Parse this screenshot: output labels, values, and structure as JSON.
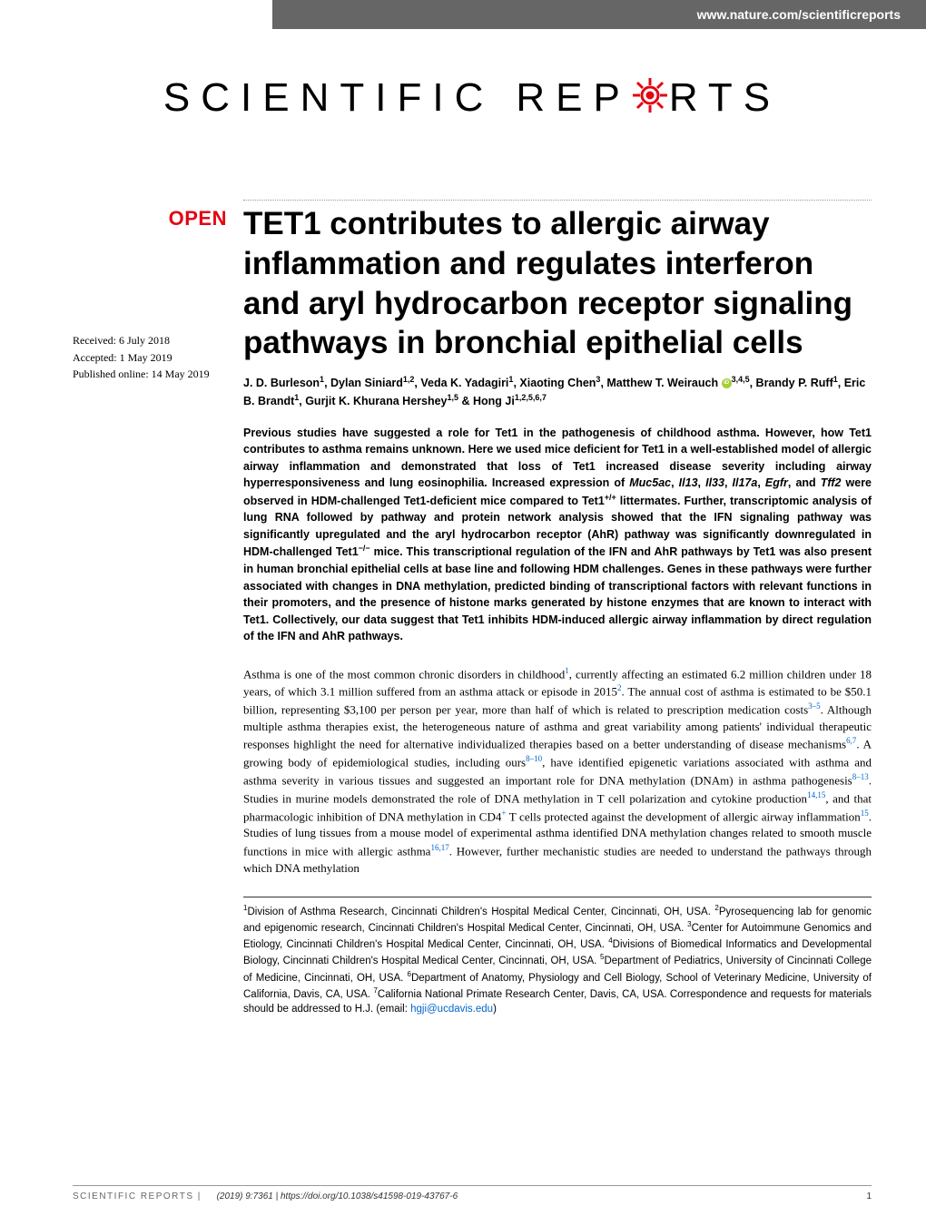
{
  "header": {
    "url": "www.nature.com/scientificreports"
  },
  "logo": {
    "text_before": "SCIENTIFIC",
    "text_mid1": "REP",
    "text_mid2": "RTS",
    "gear_color": "#e30613"
  },
  "badge": {
    "open": "OPEN"
  },
  "dates": {
    "received": "Received: 6 July 2018",
    "accepted": "Accepted: 1 May 2019",
    "published": "Published online: 14 May 2019"
  },
  "title": "TET1 contributes to allergic airway inflammation and regulates interferon and aryl hydrocarbon receptor signaling pathways in bronchial epithelial cells",
  "authors_html": "J. D. Burleson<sup>1</sup>, Dylan Siniard<sup>1,2</sup>, Veda K. Yadagiri<sup>1</sup>, Xiaoting Chen<sup>3</sup>, Matthew T. Weirauch <span class='orcid'></span><sup>3,4,5</sup>, Brandy P. Ruff<sup>1</sup>, Eric B. Brandt<sup>1</sup>, Gurjit K. Khurana Hershey<sup>1,5</sup> & Hong Ji<sup>1,2,5,6,7</sup>",
  "abstract_html": "Previous studies have suggested a role for Tet1 in the pathogenesis of childhood asthma. However, how Tet1 contributes to asthma remains unknown. Here we used mice deficient for Tet1 in a well-established model of allergic airway inflammation and demonstrated that loss of Tet1 increased disease severity including airway hyperresponsiveness and lung eosinophilia. Increased expression of <i>Muc5ac</i>, <i>Il13</i>, <i>Il33</i>, <i>Il17a</i>, <i>Egfr</i>, and <i>Tff2</i> were observed in HDM-challenged Tet1-deficient mice compared to Tet1<sup>+/+</sup> littermates. Further, transcriptomic analysis of lung RNA followed by pathway and protein network analysis showed that the IFN signaling pathway was significantly upregulated and the aryl hydrocarbon receptor (AhR) pathway was significantly downregulated in HDM-challenged Tet1<sup>−/−</sup> mice. This transcriptional regulation of the IFN and AhR pathways by Tet1 was also present in human bronchial epithelial cells at base line and following HDM challenges. Genes in these pathways were further associated with changes in DNA methylation, predicted binding of transcriptional factors with relevant functions in their promoters, and the presence of histone marks generated by histone enzymes that are known to interact with Tet1. Collectively, our data suggest that Tet1 inhibits HDM-induced allergic airway inflammation by direct regulation of the IFN and AhR pathways.",
  "body_html": "Asthma is one of the most common chronic disorders in childhood<sup class='ref-link'>1</sup>, currently affecting an estimated 6.2 million children under 18 years, of which 3.1 million suffered from an asthma attack or episode in 2015<sup class='ref-link'>2</sup>. The annual cost of asthma is estimated to be $50.1 billion, representing $3,100 per person per year, more than half of which is related to prescription medication costs<sup class='ref-link'>3–5</sup>. Although multiple asthma therapies exist, the heterogeneous nature of asthma and great variability among patients' individual therapeutic responses highlight the need for alternative individualized therapies based on a better understanding of disease mechanisms<sup class='ref-link'>6,7</sup>. A growing body of epidemiological studies, including ours<sup class='ref-link'>8–10</sup>, have identified epigenetic variations associated with asthma and asthma severity in various tissues and suggested an important role for DNA methylation (DNAm) in asthma pathogenesis<sup class='ref-link'>8–13</sup>. Studies in murine models demonstrated the role of DNA methylation in T cell polarization and cytokine production<sup class='ref-link'>14,15</sup>, and that pharmacologic inhibition of DNA methylation in CD4<sup>+</sup> T cells protected against the development of allergic airway inflammation<sup class='ref-link'>15</sup>. Studies of lung tissues from a mouse model of experimental asthma identified DNA methylation changes related to smooth muscle functions in mice with allergic asthma<sup class='ref-link'>16,17</sup>. However, further mechanistic studies are needed to understand the pathways through which DNA methylation",
  "affiliations_html": "<sup>1</sup>Division of Asthma Research, Cincinnati Children's Hospital Medical Center, Cincinnati, OH, USA. <sup>2</sup>Pyrosequencing lab for genomic and epigenomic research, Cincinnati Children's Hospital Medical Center, Cincinnati, OH, USA. <sup>3</sup>Center for Autoimmune Genomics and Etiology, Cincinnati Children's Hospital Medical Center, Cincinnati, OH, USA. <sup>4</sup>Divisions of Biomedical Informatics and Developmental Biology, Cincinnati Children's Hospital Medical Center, Cincinnati, OH, USA. <sup>5</sup>Department of Pediatrics, University of Cincinnati College of Medicine, Cincinnati, OH, USA. <sup>6</sup>Department of Anatomy, Physiology and Cell Biology, School of Veterinary Medicine, University of California, Davis, CA, USA. <sup>7</sup>California National Primate Research Center, Davis, CA, USA. Correspondence and requests for materials should be addressed to H.J. (email: <span class='email-link'>hgji@ucdavis.edu</span>)",
  "footer": {
    "journal": "SCIENTIFIC REPORTS |",
    "citation": "(2019) 9:7361  | https://doi.org/10.1038/s41598-019-43767-6",
    "page": "1"
  }
}
